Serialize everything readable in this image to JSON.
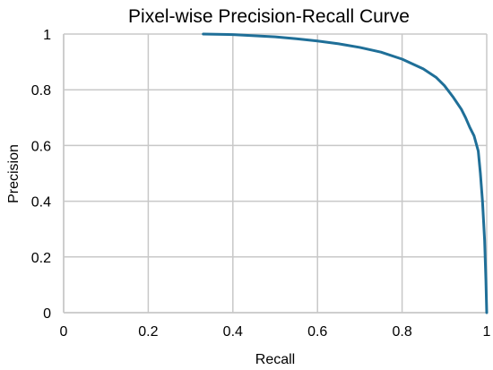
{
  "chart_data": {
    "type": "line",
    "title": "Pixel-wise Precision-Recall Curve",
    "xlabel": "Recall",
    "ylabel": "Precision",
    "xlim": [
      0,
      1
    ],
    "ylim": [
      0,
      1
    ],
    "xticks": [
      "0",
      "0.2",
      "0.4",
      "0.6",
      "0.8",
      "1"
    ],
    "yticks": [
      "0",
      "0.2",
      "0.4",
      "0.6",
      "0.8",
      "1"
    ],
    "grid": true,
    "line_color": "#1f6f98",
    "grid_color": "#c8c8c8",
    "series": [
      {
        "x": [
          0.33,
          0.4,
          0.45,
          0.5,
          0.55,
          0.6,
          0.65,
          0.7,
          0.75,
          0.8,
          0.85,
          0.88,
          0.9,
          0.92,
          0.94,
          0.95,
          0.96,
          0.97,
          0.98,
          0.985,
          0.99,
          0.995,
          0.998,
          1.0
        ],
        "y": [
          1.0,
          0.998,
          0.994,
          0.99,
          0.983,
          0.975,
          0.965,
          0.952,
          0.935,
          0.91,
          0.875,
          0.845,
          0.815,
          0.775,
          0.73,
          0.7,
          0.665,
          0.635,
          0.58,
          0.5,
          0.4,
          0.26,
          0.12,
          0.0
        ]
      }
    ]
  }
}
